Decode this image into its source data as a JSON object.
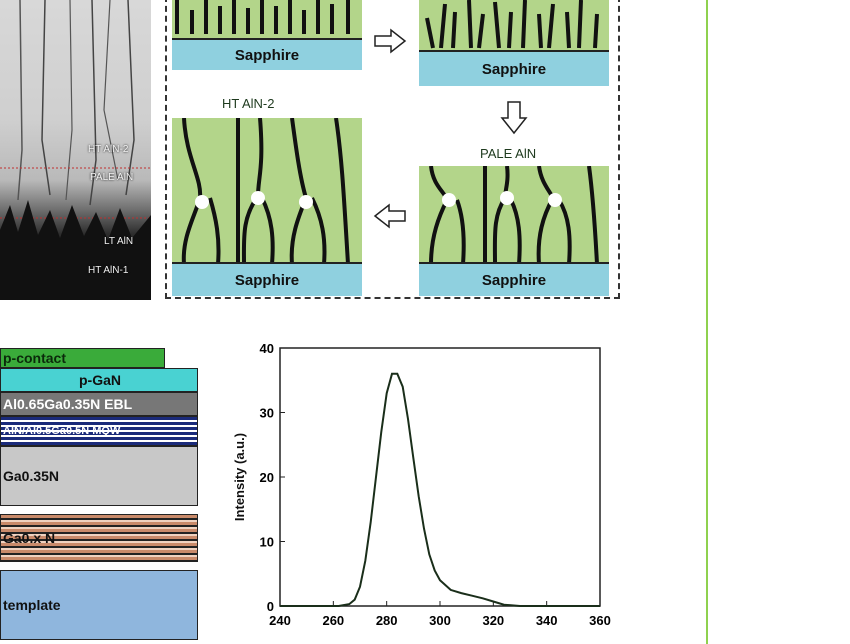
{
  "tem_image": {
    "labels": [
      "HT AlN-2",
      "PALE AlN",
      "LT AlN",
      "HT AlN-1"
    ]
  },
  "schematic": {
    "panels": [
      {
        "title": "",
        "substrate": "Sapphire"
      },
      {
        "title": "",
        "substrate": "Sapphire"
      },
      {
        "title": "HT AlN-2",
        "substrate": "Sapphire"
      },
      {
        "title": "PALE AlN",
        "substrate": "Sapphire"
      }
    ]
  },
  "led_stack": {
    "layers": [
      {
        "label": "p-contact",
        "color": "#3aab3a"
      },
      {
        "label": "p-GaN",
        "color": "#49d2d2"
      },
      {
        "label": "Al0.65Ga0.35N EBL",
        "color": "#777777"
      },
      {
        "label": "AlN/Al0.5Ga0.5N MQW",
        "color": "#1a2a7a"
      },
      {
        "label": "Ga0.35N",
        "color": "#c8c8c8"
      },
      {
        "label": "Ga0.x N",
        "color": "#c98a6a"
      },
      {
        "label": "template",
        "color": "#8fb6dd"
      }
    ]
  },
  "chart_data": {
    "type": "line",
    "xlabel": "",
    "ylabel": "Intensity (a.u.)",
    "xlim": [
      240,
      360
    ],
    "ylim": [
      0,
      40
    ],
    "xticks": [
      "240",
      "260",
      "280",
      "300",
      "320",
      "340",
      "360"
    ],
    "yticks": [
      "0",
      "10",
      "20",
      "30",
      "40"
    ],
    "series": [
      {
        "x": [
          240,
          262,
          266,
          268,
          270,
          272,
          274,
          276,
          278,
          280,
          282,
          284,
          286,
          288,
          290,
          292,
          294,
          296,
          298,
          300,
          304,
          308,
          312,
          316,
          320,
          324,
          330,
          360
        ],
        "y": [
          0,
          0,
          0.3,
          1,
          3,
          7,
          13,
          20,
          27,
          33,
          36,
          36,
          34,
          29,
          23,
          17,
          12,
          8,
          5.5,
          4,
          2.5,
          2,
          1.6,
          1.2,
          0.7,
          0.2,
          0,
          0
        ]
      }
    ],
    "line_color": "#1a2e1a"
  },
  "colors": {
    "accent_line": "#8fd14f",
    "green_film": "#b3d58a",
    "sapphire": "#8fd0df"
  }
}
